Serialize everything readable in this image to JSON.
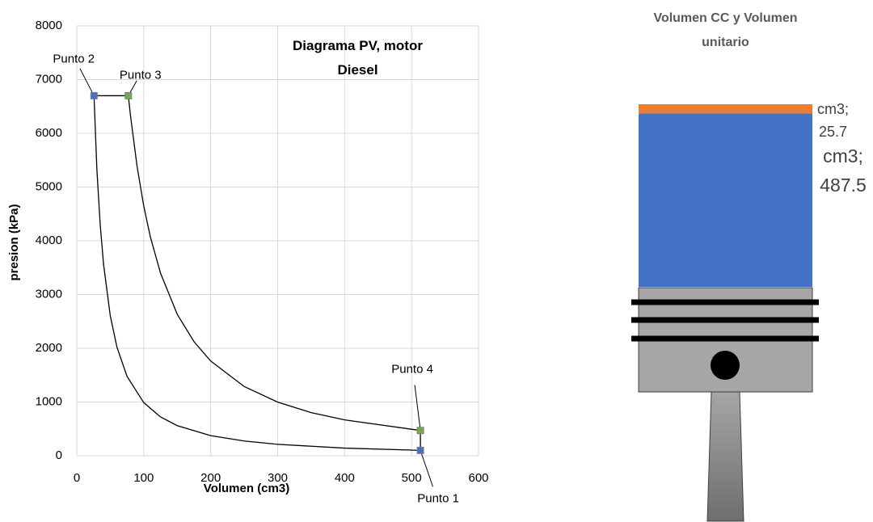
{
  "chart_data": [
    {
      "type": "line",
      "title": "Diagrama PV, motor Diesel",
      "xlabel": "Volumen (cm3)",
      "ylabel": "presion (kPa)",
      "xlim": [
        0,
        600
      ],
      "ylim": [
        0,
        8000
      ],
      "xticks": [
        0,
        100,
        200,
        300,
        400,
        500,
        600
      ],
      "yticks": [
        0,
        1000,
        2000,
        3000,
        4000,
        5000,
        6000,
        7000,
        8000
      ],
      "grid": true,
      "series": [
        {
          "color": "#000000",
          "x": [
            513.2,
            400,
            300,
            250,
            200,
            150,
            125,
            100,
            75,
            60,
            50,
            40,
            35,
            30,
            25.7,
            77,
            80,
            90,
            100,
            110,
            125,
            150,
            175,
            200,
            250,
            300,
            350,
            400,
            513.2,
            513.2
          ],
          "values": [
            100,
            142,
            212,
            274,
            374,
            560,
            722,
            988,
            1478,
            2019,
            2605,
            3560,
            4295,
            5330,
            6700,
            6700,
            6351,
            5388,
            4647,
            4066,
            3400,
            2633,
            2124,
            1762,
            1288,
            998,
            803,
            667,
            470,
            100
          ]
        },
        {
          "marker": "square",
          "colors": [
            "#4472c4",
            "#4472c4",
            "#70ad47",
            "#70ad47"
          ],
          "x": [
            513.2,
            25.7,
            77,
            513.2
          ],
          "values": [
            100,
            6700,
            6700,
            470
          ],
          "labels": [
            "Punto 1",
            "Punto 2",
            "Punto 3",
            "Punto 4"
          ]
        }
      ]
    },
    {
      "type": "bar",
      "stacked": true,
      "title": "Volumen CC y Volumen unitario",
      "series": [
        {
          "color": "#4472c4",
          "values": [
            487.5
          ],
          "value_labels": [
            "cm3; 487.5"
          ]
        },
        {
          "color": "#ed7d31",
          "values": [
            25.7
          ],
          "value_labels": [
            "cm3; 25.7"
          ]
        }
      ]
    }
  ]
}
